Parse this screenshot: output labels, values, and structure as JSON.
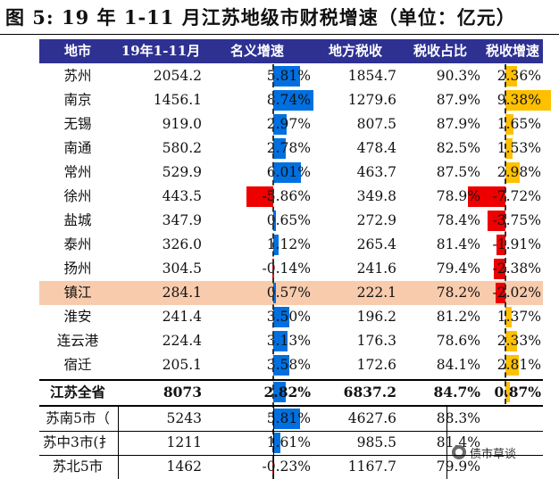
{
  "title": "图 5: 19 年 1-11 月江苏地级市财税增速（单位：亿元）",
  "headers": {
    "city": "地市",
    "revenue": "19年1-11月",
    "nominal": "名义增速",
    "local": "地方税收",
    "share": "税收占比",
    "tax_growth": "税收增速"
  },
  "rows": [
    {
      "city": "苏州",
      "revenue": "2054.2",
      "nominal": "5.81%",
      "nominal_v": 5.81,
      "local": "1854.7",
      "share": "90.3%",
      "tax": "2.36%",
      "tax_v": 2.36
    },
    {
      "city": "南京",
      "revenue": "1456.1",
      "nominal": "8.74%",
      "nominal_v": 8.74,
      "local": "1279.6",
      "share": "87.9%",
      "tax": "9.38%",
      "tax_v": 9.38
    },
    {
      "city": "无锡",
      "revenue": "919.0",
      "nominal": "2.97%",
      "nominal_v": 2.97,
      "local": "807.5",
      "share": "87.9%",
      "tax": "1.65%",
      "tax_v": 1.65
    },
    {
      "city": "南通",
      "revenue": "580.2",
      "nominal": "2.78%",
      "nominal_v": 2.78,
      "local": "478.4",
      "share": "82.5%",
      "tax": "1.53%",
      "tax_v": 1.53
    },
    {
      "city": "常州",
      "revenue": "529.9",
      "nominal": "6.01%",
      "nominal_v": 6.01,
      "local": "463.7",
      "share": "87.5%",
      "tax": "2.98%",
      "tax_v": 2.98
    },
    {
      "city": "徐州",
      "revenue": "443.5",
      "nominal": "-5.86%",
      "nominal_v": -5.86,
      "local": "349.8",
      "share": "78.9%",
      "tax": "-7.72%",
      "tax_v": -7.72
    },
    {
      "city": "盐城",
      "revenue": "347.9",
      "nominal": "0.65%",
      "nominal_v": 0.65,
      "local": "272.9",
      "share": "78.4%",
      "tax": "-3.75%",
      "tax_v": -3.75
    },
    {
      "city": "泰州",
      "revenue": "326.0",
      "nominal": "1.12%",
      "nominal_v": 1.12,
      "local": "265.4",
      "share": "81.4%",
      "tax": "-1.91%",
      "tax_v": -1.91
    },
    {
      "city": "扬州",
      "revenue": "304.5",
      "nominal": "-0.14%",
      "nominal_v": -0.14,
      "local": "241.6",
      "share": "79.4%",
      "tax": "-2.38%",
      "tax_v": -2.38
    },
    {
      "city": "镇江",
      "revenue": "284.1",
      "nominal": "0.57%",
      "nominal_v": 0.57,
      "local": "222.1",
      "share": "78.2%",
      "tax": "-2.02%",
      "tax_v": -2.02,
      "highlight": true
    },
    {
      "city": "淮安",
      "revenue": "241.4",
      "nominal": "3.50%",
      "nominal_v": 3.5,
      "local": "196.2",
      "share": "81.2%",
      "tax": "1.37%",
      "tax_v": 1.37
    },
    {
      "city": "连云港",
      "revenue": "224.4",
      "nominal": "3.13%",
      "nominal_v": 3.13,
      "local": "176.3",
      "share": "78.6%",
      "tax": "2.33%",
      "tax_v": 2.33
    },
    {
      "city": "宿迁",
      "revenue": "205.1",
      "nominal": "3.58%",
      "nominal_v": 3.58,
      "local": "172.6",
      "share": "84.1%",
      "tax": "2.81%",
      "tax_v": 2.81
    },
    {
      "city": "江苏全省",
      "revenue": "8073",
      "nominal": "2.82%",
      "nominal_v": 2.82,
      "local": "6837.2",
      "share": "84.7%",
      "tax": "0.87%",
      "tax_v": 0.87,
      "bold": true
    },
    {
      "city": "苏南5市（",
      "revenue": "5243",
      "nominal": "5.81%",
      "nominal_v": 5.81,
      "local": "4627.6",
      "share": "88.3%",
      "tax": "",
      "tax_v": null
    },
    {
      "city": "苏中3市(扌",
      "revenue": "1211",
      "nominal": "1.61%",
      "nominal_v": 1.61,
      "local": "985.5",
      "share": "81.4%",
      "tax": "",
      "tax_v": null
    },
    {
      "city": "苏北5市",
      "revenue": "1462",
      "nominal": "-0.23%",
      "nominal_v": -0.23,
      "local": "1167.7",
      "share": "79.9%",
      "tax": "",
      "tax_v": null
    }
  ],
  "colors": {
    "header_bg": "#2e3192",
    "positive": "#0070e0",
    "negative": "#ee0000",
    "tax_bar": "#ffc000",
    "highlight": "#f8cbad"
  },
  "logo": {
    "icon": "wechat-icon",
    "text": "债市草谈"
  }
}
